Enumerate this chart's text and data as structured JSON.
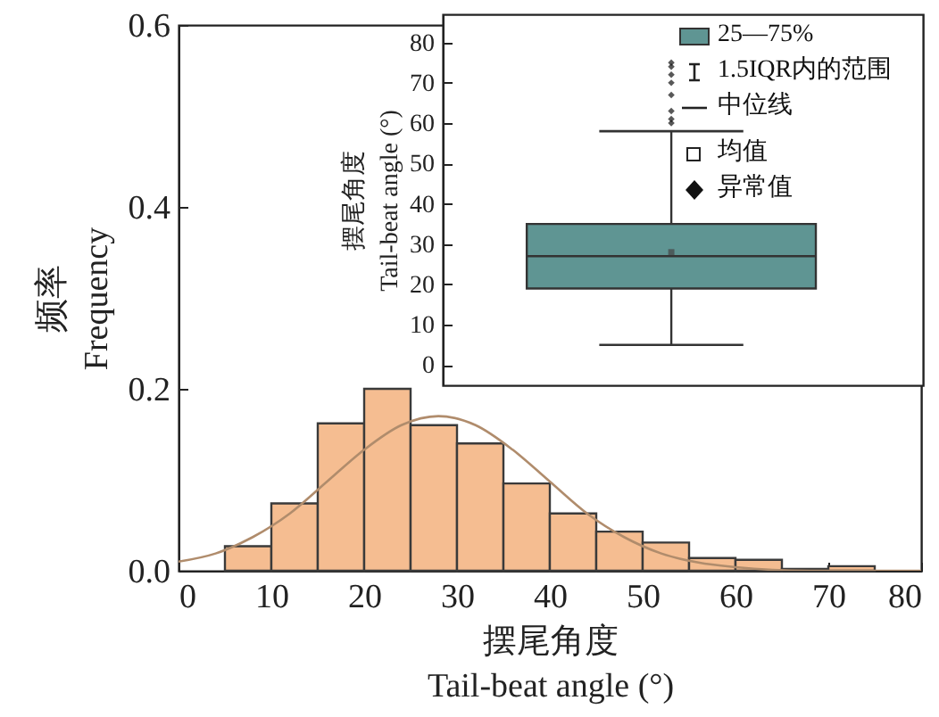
{
  "chart_data": [
    {
      "type": "histogram",
      "xlabel": "摆尾角度\nTail-beat angle (°)",
      "ylabel": "频率\nFrequency",
      "bins": [
        5,
        10,
        15,
        20,
        25,
        30,
        35,
        40,
        45,
        50,
        55,
        60,
        65,
        70,
        75
      ],
      "xlim": [
        0,
        80
      ],
      "xticks": [
        0,
        10,
        20,
        30,
        40,
        50,
        60,
        70,
        80
      ],
      "ylim": [
        0,
        0.6
      ],
      "yticks": [
        {
          "value": 0,
          "label": "0.0"
        },
        {
          "value": 0.2,
          "label": "0.2"
        },
        {
          "value": 0.4,
          "label": "0.4"
        },
        {
          "value": 0.6,
          "label": "0.6"
        }
      ],
      "series": [
        {
          "type": "histogram",
          "color": "#f5bd91",
          "values": [
            0.027,
            0.074,
            0.162,
            0.2,
            0.16,
            0.14,
            0.096,
            0.063,
            0.043,
            0.031,
            0.014,
            0.012,
            0.002,
            0.005
          ]
        },
        {
          "type": "line",
          "color": "#b08c6c",
          "x": [
            0,
            4,
            8,
            12,
            16,
            20,
            24,
            28,
            32,
            36,
            40,
            44,
            48,
            52,
            56,
            60,
            64,
            68,
            72,
            76,
            80
          ],
          "values": [
            0.01,
            0.019,
            0.037,
            0.063,
            0.098,
            0.133,
            0.16,
            0.17,
            0.16,
            0.133,
            0.098,
            0.063,
            0.037,
            0.019,
            0.009,
            0.004,
            0.001,
            0,
            0,
            0,
            0
          ]
        }
      ]
    },
    {
      "type": "box",
      "ylabel": "摆尾角度\nTail-beat angle (°)",
      "categories": [
        null
      ],
      "ylim": [
        -5,
        87
      ],
      "yticks": [
        0,
        10,
        20,
        30,
        40,
        50,
        60,
        70,
        80
      ],
      "tick_labels": "y",
      "color": "#5f9593",
      "boxes": [
        {
          "low": 5,
          "q1": 19,
          "median": 27,
          "q3": 35,
          "high": 58,
          "mean": 28,
          "outliers": [
            60,
            61,
            63,
            67,
            70,
            72,
            74,
            75
          ]
        }
      ],
      "annotations": [
        "25—75%",
        "1.5IQR内的范围",
        "中位线",
        "均值",
        "异常值"
      ]
    }
  ]
}
